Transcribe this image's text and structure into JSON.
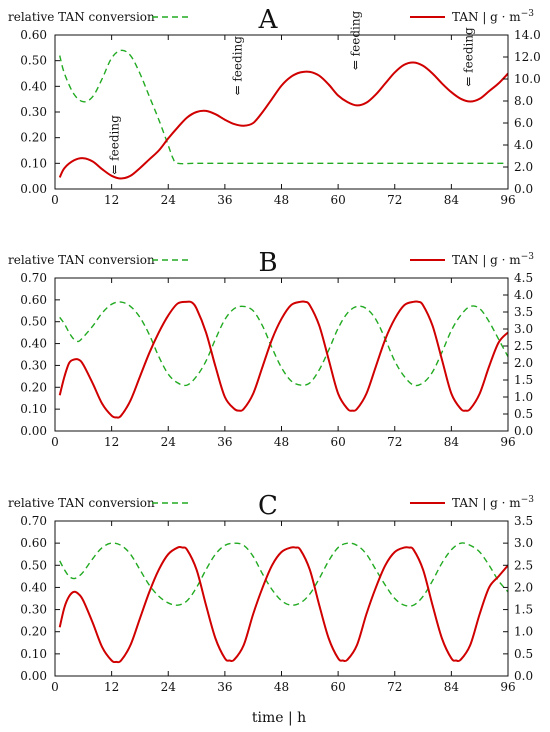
{
  "figure": {
    "xlabel": "time | h"
  },
  "colors": {
    "red": "#d00000",
    "green": "#22aa22",
    "axis": "#111111"
  },
  "chart_data": [
    {
      "type": "line",
      "panel": "A",
      "x_ticks": [
        0,
        12,
        24,
        36,
        48,
        60,
        72,
        84,
        96
      ],
      "xlim": [
        0,
        96
      ],
      "y_left": {
        "lim": [
          0,
          0.6
        ],
        "ticks": [
          "0.00",
          "0.10",
          "0.20",
          "0.30",
          "0.40",
          "0.50",
          "0.60"
        ]
      },
      "y_right": {
        "lim": [
          0,
          14
        ],
        "ticks": [
          "0.0",
          "2.0",
          "4.0",
          "6.0",
          "8.0",
          "10.0",
          "12.0",
          "14.0"
        ]
      },
      "legend": {
        "left": "relative TAN conversion",
        "right": "TAN | g · m",
        "right_sup": "−3"
      },
      "annotations": [
        {
          "label": "⇐ feeding",
          "x": 13.5,
          "y_right": 1.3
        },
        {
          "label": "⇐ feeding",
          "x": 39.5,
          "y_right": 8.5
        },
        {
          "label": "⇐ feeding",
          "x": 64.5,
          "y_right": 10.8
        },
        {
          "label": "⇐ feeding",
          "x": 88.5,
          "y_right": 9.3
        }
      ],
      "series": [
        {
          "name": "relative TAN conversion",
          "axis": "left",
          "style": "dashed",
          "x": [
            1,
            2,
            4,
            6,
            8,
            10,
            12,
            14,
            16,
            18,
            20,
            22,
            24,
            25,
            26,
            30,
            40,
            50,
            60,
            70,
            80,
            90,
            96
          ],
          "y": [
            0.52,
            0.45,
            0.37,
            0.34,
            0.36,
            0.43,
            0.51,
            0.54,
            0.52,
            0.45,
            0.36,
            0.27,
            0.17,
            0.12,
            0.1,
            0.1,
            0.1,
            0.1,
            0.1,
            0.1,
            0.1,
            0.1,
            0.1
          ]
        },
        {
          "name": "TAN | g·m−3",
          "axis": "right",
          "style": "solid",
          "x": [
            1,
            2,
            4,
            6,
            8,
            10,
            12,
            14,
            16,
            18,
            20,
            22,
            24,
            26,
            28,
            30,
            32,
            34,
            36,
            38,
            40,
            42,
            44,
            46,
            48,
            50,
            52,
            54,
            56,
            58,
            60,
            62,
            64,
            66,
            68,
            70,
            72,
            74,
            76,
            78,
            80,
            82,
            84,
            86,
            88,
            90,
            92,
            94,
            96
          ],
          "y": [
            1.05,
            1.9,
            2.6,
            2.8,
            2.5,
            1.8,
            1.2,
            0.95,
            1.2,
            1.9,
            2.7,
            3.5,
            4.6,
            5.6,
            6.5,
            7.0,
            7.1,
            6.8,
            6.3,
            5.9,
            5.75,
            6.0,
            7.0,
            8.2,
            9.4,
            10.2,
            10.6,
            10.65,
            10.3,
            9.5,
            8.5,
            7.9,
            7.6,
            7.85,
            8.6,
            9.6,
            10.6,
            11.3,
            11.5,
            11.2,
            10.5,
            9.6,
            8.8,
            8.2,
            7.95,
            8.2,
            8.9,
            9.6,
            10.5
          ]
        }
      ]
    },
    {
      "type": "line",
      "panel": "B",
      "x_ticks": [
        0,
        12,
        24,
        36,
        48,
        60,
        72,
        84,
        96
      ],
      "xlim": [
        0,
        96
      ],
      "y_left": {
        "lim": [
          0,
          0.7
        ],
        "ticks": [
          "0.00",
          "0.10",
          "0.20",
          "0.30",
          "0.40",
          "0.50",
          "0.60",
          "0.70"
        ]
      },
      "y_right": {
        "lim": [
          0,
          4.5
        ],
        "ticks": [
          "0.0",
          "0.5",
          "1.0",
          "1.5",
          "2.0",
          "2.5",
          "3.0",
          "3.5",
          "4.0",
          "4.5"
        ]
      },
      "legend": {
        "left": "relative TAN conversion",
        "right": "TAN | g · m",
        "right_sup": "−3"
      },
      "series": [
        {
          "name": "relative TAN conversion",
          "axis": "left",
          "style": "dashed",
          "x": [
            1,
            2,
            3,
            4,
            5,
            6,
            8,
            10,
            12,
            14,
            16,
            18,
            20,
            22,
            24,
            26,
            28,
            30,
            32,
            34,
            36,
            38,
            40,
            42,
            44,
            46,
            48,
            50,
            52,
            54,
            56,
            58,
            60,
            62,
            64,
            66,
            68,
            70,
            72,
            74,
            76,
            78,
            80,
            82,
            84,
            86,
            88,
            90,
            92,
            94,
            96
          ],
          "y": [
            0.52,
            0.49,
            0.45,
            0.42,
            0.41,
            0.43,
            0.48,
            0.54,
            0.58,
            0.59,
            0.57,
            0.52,
            0.44,
            0.34,
            0.26,
            0.22,
            0.21,
            0.25,
            0.32,
            0.42,
            0.51,
            0.56,
            0.57,
            0.55,
            0.48,
            0.38,
            0.29,
            0.23,
            0.21,
            0.22,
            0.28,
            0.37,
            0.47,
            0.54,
            0.57,
            0.56,
            0.51,
            0.42,
            0.32,
            0.25,
            0.21,
            0.22,
            0.27,
            0.36,
            0.46,
            0.53,
            0.57,
            0.56,
            0.5,
            0.42,
            0.34
          ]
        },
        {
          "name": "TAN | g·m−3",
          "axis": "right",
          "style": "solid",
          "x": [
            1,
            2,
            3,
            4,
            5,
            6,
            8,
            10,
            12,
            13,
            14,
            16,
            18,
            20,
            22,
            24,
            26,
            28,
            29,
            30,
            32,
            34,
            36,
            38,
            39,
            40,
            42,
            44,
            46,
            48,
            50,
            52,
            53,
            54,
            56,
            58,
            60,
            62,
            63,
            64,
            66,
            68,
            70,
            72,
            74,
            76,
            77,
            78,
            80,
            82,
            84,
            86,
            87,
            88,
            90,
            92,
            94,
            96
          ],
          "y": [
            1.05,
            1.6,
            2.0,
            2.1,
            2.1,
            1.95,
            1.4,
            0.8,
            0.45,
            0.4,
            0.45,
            0.9,
            1.6,
            2.3,
            2.9,
            3.4,
            3.75,
            3.8,
            3.78,
            3.6,
            2.9,
            1.9,
            1.0,
            0.65,
            0.6,
            0.65,
            1.1,
            1.9,
            2.7,
            3.3,
            3.7,
            3.8,
            3.8,
            3.7,
            3.1,
            2.1,
            1.1,
            0.65,
            0.6,
            0.65,
            1.1,
            1.9,
            2.7,
            3.3,
            3.7,
            3.8,
            3.8,
            3.7,
            3.1,
            2.1,
            1.1,
            0.65,
            0.6,
            0.65,
            1.1,
            1.9,
            2.6,
            2.9
          ]
        }
      ]
    },
    {
      "type": "line",
      "panel": "C",
      "x_ticks": [
        0,
        12,
        24,
        36,
        48,
        60,
        72,
        84,
        96
      ],
      "xlim": [
        0,
        96
      ],
      "y_left": {
        "lim": [
          0,
          0.7
        ],
        "ticks": [
          "0.00",
          "0.10",
          "0.20",
          "0.30",
          "0.40",
          "0.50",
          "0.60",
          "0.70"
        ]
      },
      "y_right": {
        "lim": [
          0,
          3.5
        ],
        "ticks": [
          "0.0",
          "0.5",
          "1.0",
          "1.5",
          "2.0",
          "2.5",
          "3.0",
          "3.5"
        ]
      },
      "legend": {
        "left": "relative TAN conversion",
        "right": "TAN | g · m",
        "right_sup": "−3"
      },
      "series": [
        {
          "name": "relative TAN conversion",
          "axis": "left",
          "style": "dashed",
          "x": [
            1,
            2,
            3,
            4,
            5,
            6,
            8,
            10,
            12,
            14,
            16,
            18,
            20,
            22,
            24,
            26,
            28,
            30,
            32,
            34,
            36,
            38,
            40,
            42,
            44,
            46,
            48,
            50,
            52,
            54,
            56,
            58,
            60,
            62,
            64,
            66,
            68,
            70,
            72,
            74,
            76,
            78,
            80,
            82,
            84,
            86,
            88,
            90,
            92,
            94,
            96
          ],
          "y": [
            0.52,
            0.48,
            0.45,
            0.44,
            0.45,
            0.47,
            0.53,
            0.58,
            0.6,
            0.59,
            0.55,
            0.48,
            0.41,
            0.36,
            0.33,
            0.32,
            0.34,
            0.4,
            0.48,
            0.55,
            0.59,
            0.6,
            0.59,
            0.54,
            0.46,
            0.39,
            0.34,
            0.32,
            0.33,
            0.37,
            0.44,
            0.52,
            0.58,
            0.6,
            0.59,
            0.55,
            0.48,
            0.41,
            0.35,
            0.32,
            0.32,
            0.36,
            0.43,
            0.51,
            0.57,
            0.6,
            0.59,
            0.56,
            0.5,
            0.43,
            0.38
          ]
        },
        {
          "name": "TAN | g·m−3",
          "axis": "right",
          "style": "solid",
          "x": [
            1,
            2,
            3,
            4,
            5,
            6,
            8,
            10,
            12,
            13,
            14,
            16,
            18,
            20,
            22,
            24,
            26,
            27,
            28,
            30,
            32,
            34,
            36,
            37,
            38,
            40,
            42,
            44,
            46,
            48,
            50,
            51,
            52,
            54,
            56,
            58,
            60,
            61,
            62,
            64,
            66,
            68,
            70,
            72,
            74,
            75,
            76,
            78,
            80,
            82,
            84,
            85,
            86,
            88,
            90,
            92,
            94,
            96
          ],
          "y": [
            1.1,
            1.55,
            1.8,
            1.9,
            1.85,
            1.7,
            1.2,
            0.65,
            0.35,
            0.32,
            0.35,
            0.7,
            1.3,
            1.9,
            2.4,
            2.75,
            2.9,
            2.9,
            2.85,
            2.4,
            1.6,
            0.85,
            0.4,
            0.35,
            0.37,
            0.7,
            1.4,
            2.0,
            2.5,
            2.8,
            2.9,
            2.9,
            2.85,
            2.4,
            1.6,
            0.85,
            0.4,
            0.35,
            0.37,
            0.7,
            1.4,
            2.0,
            2.5,
            2.8,
            2.9,
            2.9,
            2.85,
            2.4,
            1.6,
            0.85,
            0.4,
            0.35,
            0.37,
            0.7,
            1.4,
            2.0,
            2.25,
            2.5
          ]
        }
      ]
    }
  ]
}
